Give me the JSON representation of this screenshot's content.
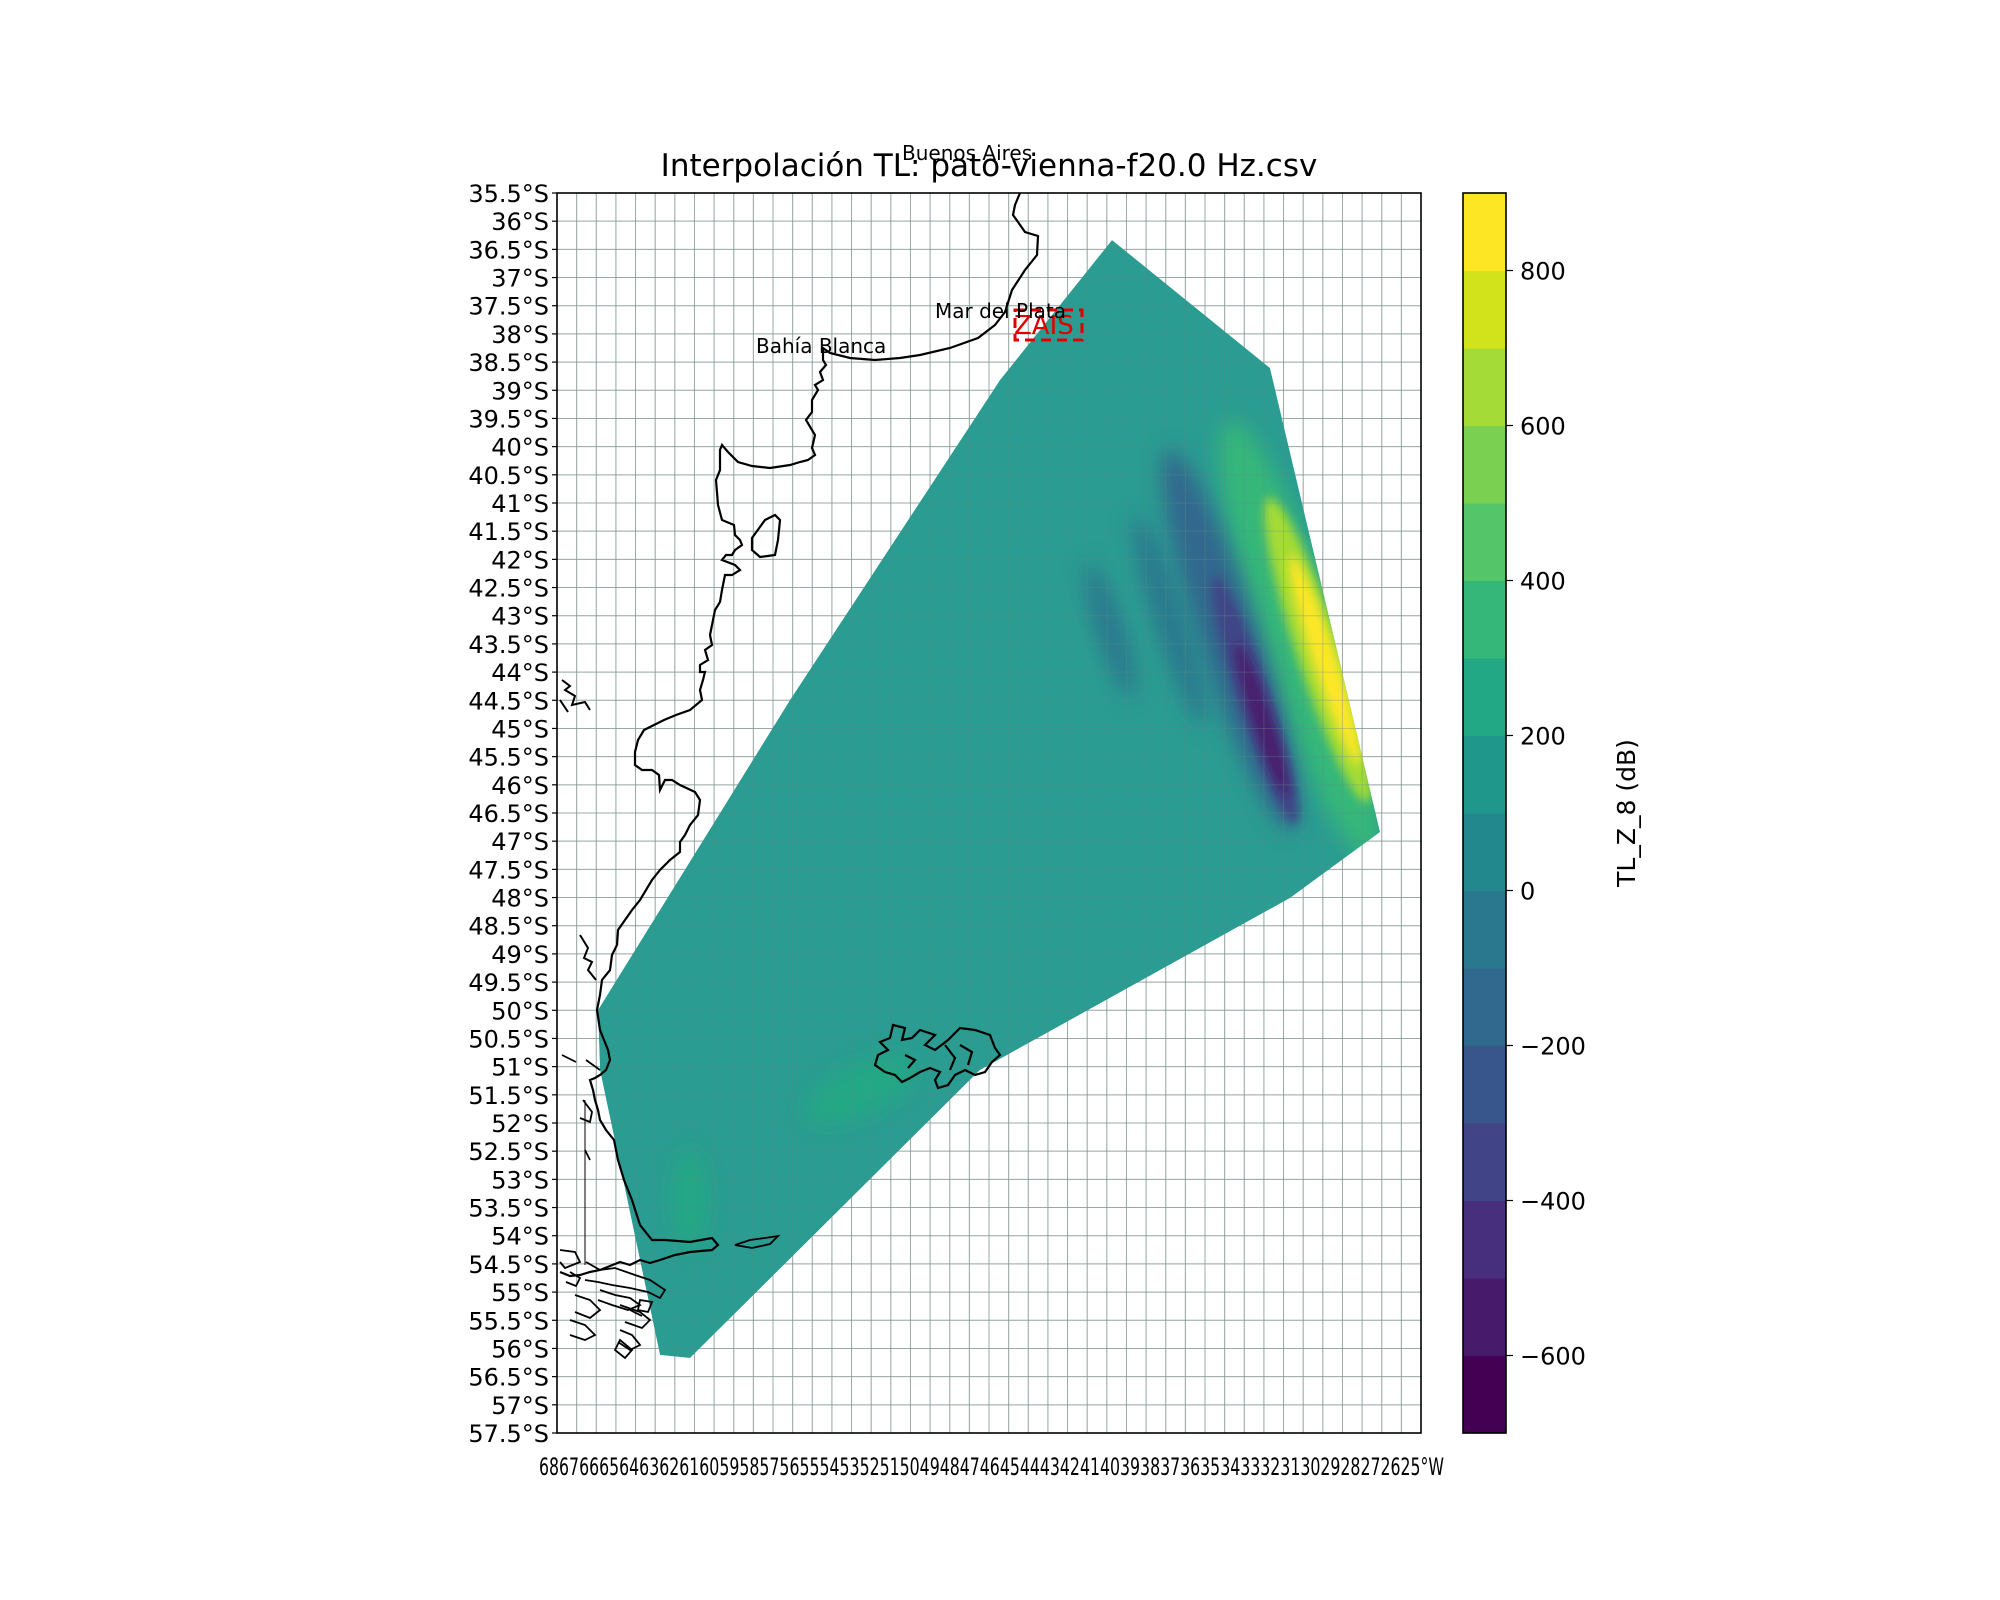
{
  "chart_data": {
    "type": "heatmap",
    "title": "Interpolación TL: pato-vienna-f20.0 Hz.csv",
    "colorbar_label": "TL_Z_8 (dB)",
    "colorbar_range": [
      -700,
      900
    ],
    "colorbar_ticks": [
      "800",
      "600",
      "400",
      "200",
      "0",
      "−200",
      "−400",
      "−600"
    ],
    "colormap": [
      "#440154",
      "#481a6c",
      "#472f7d",
      "#414487",
      "#39568c",
      "#31688e",
      "#2a788e",
      "#23888e",
      "#1f988b",
      "#22a884",
      "#35b779",
      "#54c568",
      "#7ad151",
      "#a5db36",
      "#d2e21b",
      "#fde725"
    ],
    "background_value_color": "#21988c",
    "lat_ticks": [
      "35.5°S",
      "36°S",
      "36.5°S",
      "37°S",
      "37.5°S",
      "38°S",
      "38.5°S",
      "39°S",
      "39.5°S",
      "40°S",
      "40.5°S",
      "41°S",
      "41.5°S",
      "42°S",
      "42.5°S",
      "43°S",
      "43.5°S",
      "44°S",
      "44.5°S",
      "45°S",
      "45.5°S",
      "46°S",
      "46.5°S",
      "47°S",
      "47.5°S",
      "48°S",
      "48.5°S",
      "49°S",
      "49.5°S",
      "50°S",
      "50.5°S",
      "51°S",
      "51.5°S",
      "52°S",
      "52.5°S",
      "53°S",
      "53.5°S",
      "54°S",
      "54.5°S",
      "55°S",
      "55.5°S",
      "56°S",
      "56.5°S",
      "57°S",
      "57.5°S"
    ],
    "lon_tick_text": "6867666564636261605958575655545352515049484746454443424140393837363534333231302928272625°W",
    "lon_range": [
      -69,
      -47
    ],
    "lat_range": [
      -57.5,
      -35.5
    ],
    "cities": [
      "Buenos Aires",
      "Mar del Plata",
      "Bahía Blanca"
    ],
    "zone_label": "ZAIS",
    "grid": true
  }
}
